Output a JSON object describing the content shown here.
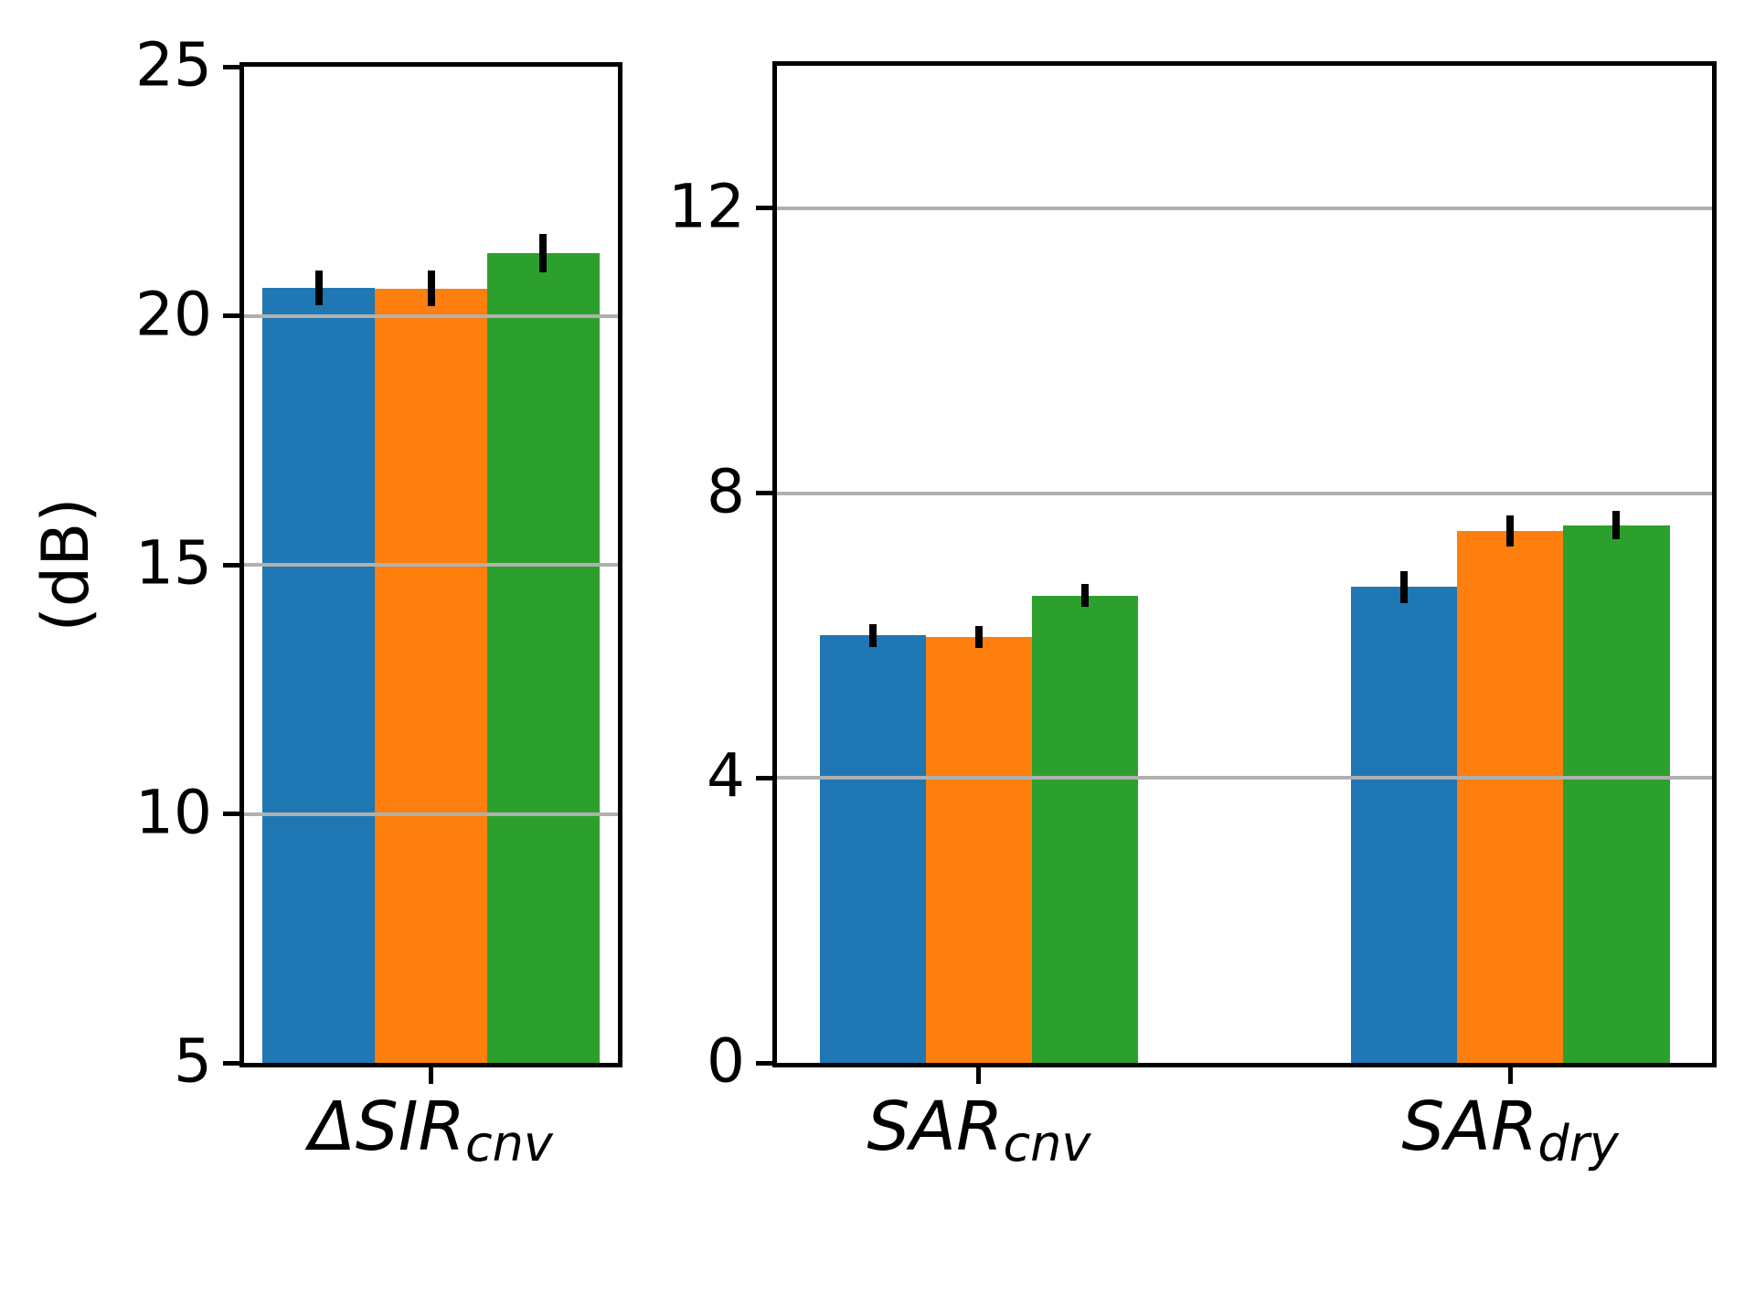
{
  "figure": {
    "ylabel": "(dB)",
    "background": "#ffffff"
  },
  "series_colors": [
    "#1f77b4",
    "#ff7f0e",
    "#2ca02c"
  ],
  "grid_color": "#b0b0b0",
  "spine_color": "#000000",
  "error_color": "#000000",
  "chart_data": [
    {
      "type": "bar",
      "title": "",
      "ylabel": "(dB)",
      "ylim": [
        5,
        25
      ],
      "yticks": [
        5,
        10,
        15,
        20,
        25
      ],
      "grid_yticks": [
        10,
        15,
        20
      ],
      "xlim": [
        -0.5,
        0.5
      ],
      "bar_width": 0.3,
      "grid": true,
      "legend": "none",
      "categories": [
        {
          "label": "ΔSIR_cnv",
          "main": "ΔSIR",
          "sub": "cnv",
          "x": 0
        }
      ],
      "series": [
        {
          "name": "series-blue",
          "values": [
            20.56
          ],
          "errors": [
            0.35
          ]
        },
        {
          "name": "series-orange",
          "values": [
            20.55
          ],
          "errors": [
            0.36
          ]
        },
        {
          "name": "series-green",
          "values": [
            21.26
          ],
          "errors": [
            0.38
          ]
        }
      ]
    },
    {
      "type": "bar",
      "title": "",
      "ylabel": "",
      "ylim": [
        0,
        14
      ],
      "yticks": [
        0,
        4,
        8,
        12
      ],
      "grid_yticks": [
        4,
        8,
        12
      ],
      "xlim": [
        -0.38,
        1.38
      ],
      "bar_width": 0.2,
      "grid": true,
      "legend": "none",
      "categories": [
        {
          "label": "SAR_cnv",
          "main": "SAR",
          "sub": "cnv",
          "x": 0
        },
        {
          "label": "SAR_dry",
          "main": "SAR",
          "sub": "dry",
          "x": 1
        }
      ],
      "series": [
        {
          "name": "series-blue",
          "values": [
            6.0,
            6.68
          ],
          "errors": [
            0.16,
            0.22
          ]
        },
        {
          "name": "series-orange",
          "values": [
            5.98,
            7.47
          ],
          "errors": [
            0.16,
            0.22
          ]
        },
        {
          "name": "series-green",
          "values": [
            6.56,
            7.55
          ],
          "errors": [
            0.16,
            0.2
          ]
        }
      ]
    }
  ]
}
